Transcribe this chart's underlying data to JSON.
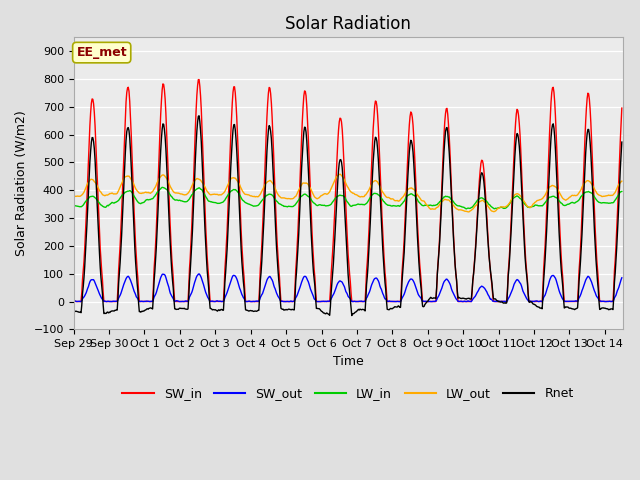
{
  "title": "Solar Radiation",
  "xlabel": "Time",
  "ylabel": "Solar Radiation (W/m2)",
  "ylim": [
    -100,
    950
  ],
  "yticks": [
    -100,
    0,
    100,
    200,
    300,
    400,
    500,
    600,
    700,
    800,
    900
  ],
  "n_days": 15.5,
  "date_labels": [
    "Sep 29",
    "Sep 30",
    "Oct 1",
    "Oct 2",
    "Oct 3",
    "Oct 4",
    "Oct 5",
    "Oct 6",
    "Oct 7",
    "Oct 8",
    "Oct 9",
    "Oct 10",
    "Oct 11",
    "Oct 12",
    "Oct 13",
    "Oct 14"
  ],
  "colors": {
    "SW_in": "#ff0000",
    "SW_out": "#0000ff",
    "LW_in": "#00cc00",
    "LW_out": "#ffaa00",
    "Rnet": "#000000"
  },
  "legend_label": "EE_met",
  "background_color": "#e0e0e0",
  "plot_bg_color": "#ebebeb",
  "SW_in_peaks": [
    735,
    775,
    785,
    800,
    775,
    775,
    760,
    665,
    725,
    685,
    695,
    510,
    695,
    775,
    750
  ],
  "SW_out_peaks": [
    80,
    90,
    100,
    100,
    95,
    90,
    90,
    75,
    85,
    82,
    80,
    55,
    78,
    95,
    90
  ],
  "LW_in_base": [
    340,
    355,
    365,
    360,
    355,
    345,
    345,
    345,
    345,
    345,
    345,
    335,
    340,
    345,
    355
  ],
  "LW_in_day_boost": [
    40,
    45,
    50,
    50,
    50,
    45,
    40,
    40,
    45,
    45,
    40,
    35,
    38,
    40,
    42
  ],
  "LW_out_base": [
    380,
    390,
    390,
    385,
    385,
    375,
    370,
    390,
    375,
    360,
    330,
    325,
    340,
    365,
    380
  ],
  "LW_out_day_boost": [
    60,
    65,
    65,
    60,
    65,
    60,
    60,
    70,
    60,
    50,
    40,
    40,
    45,
    55,
    60
  ],
  "title_fontsize": 12,
  "axis_fontsize": 9,
  "tick_fontsize": 8,
  "legend_fontsize": 9,
  "linewidth": 1.0
}
